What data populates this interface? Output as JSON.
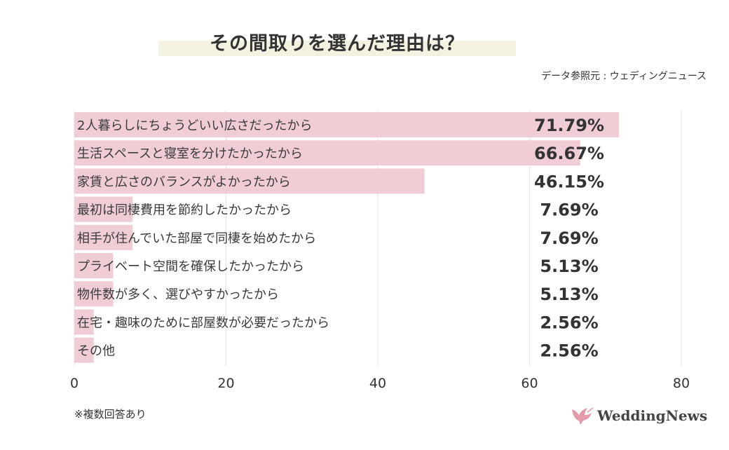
{
  "header": {
    "title": "その間取りを選んだ理由は？",
    "source": "データ参照元 : ウェディングニュース"
  },
  "footer": {
    "note": "※複数回答あり",
    "logo": "WeddingNews"
  },
  "colors": {
    "bar": "#f0cdd5",
    "grid": "#e6e6e6",
    "text": "#3a3a3a",
    "logo": "#e39aab"
  },
  "chart_data": {
    "type": "bar",
    "orientation": "horizontal",
    "title": "その間取りを選んだ理由は？",
    "categories": [
      "2人暮らしにちょうどいい広さだったから",
      "生活スペースと寝室を分けたかったから",
      "家賃と広さのバランスがよかったから",
      "最初は同棲費用を節約したかったから",
      "相手が住んでいた部屋で同棲を始めたから",
      "プライベート空間を確保したかったから",
      "物件数が多く、選びやすかったから",
      "在宅・趣味のために部屋数が必要だったから",
      "その他"
    ],
    "values": [
      71.79,
      66.67,
      46.15,
      7.69,
      7.69,
      5.13,
      5.13,
      2.56,
      2.56
    ],
    "labels": [
      "71.79%",
      "66.67%",
      "46.15%",
      "7.69%",
      "7.69%",
      "5.13%",
      "5.13%",
      "2.56%",
      "2.56%"
    ],
    "xlim": [
      0,
      80
    ],
    "xticks": [
      "0",
      "20",
      "40",
      "60",
      "80"
    ],
    "grid": true,
    "xlabel": "",
    "ylabel": ""
  }
}
